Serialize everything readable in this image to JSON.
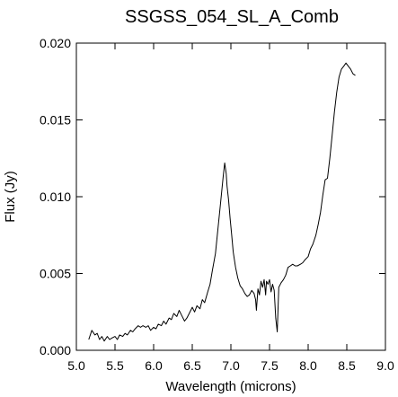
{
  "chart_data": {
    "type": "line",
    "title": "SSGSS_054_SL_A_Comb",
    "xlabel": "Wavelength (microns)",
    "ylabel": "Flux (Jy)",
    "xlim": [
      5.0,
      9.0
    ],
    "ylim": [
      0.0,
      0.02
    ],
    "xticks": [
      5.0,
      5.5,
      6.0,
      6.5,
      7.0,
      7.5,
      8.0,
      8.5,
      9.0
    ],
    "xtick_labels": [
      "5.0",
      "5.5",
      "6.0",
      "6.5",
      "7.0",
      "7.5",
      "8.0",
      "8.5",
      "9.0"
    ],
    "yticks": [
      0.0,
      0.005,
      0.01,
      0.015,
      0.02
    ],
    "ytick_labels": [
      "0.000",
      "0.005",
      "0.010",
      "0.015",
      "0.020"
    ],
    "grid": false,
    "series": [
      {
        "x": [
          5.16,
          5.2,
          5.24,
          5.27,
          5.3,
          5.33,
          5.36,
          5.4,
          5.43,
          5.46,
          5.5,
          5.53,
          5.56,
          5.6,
          5.63,
          5.66,
          5.7,
          5.73,
          5.76,
          5.8,
          5.83,
          5.86,
          5.9,
          5.93,
          5.96,
          6.0,
          6.03,
          6.06,
          6.1,
          6.13,
          6.16,
          6.2,
          6.23,
          6.26,
          6.3,
          6.33,
          6.36,
          6.4,
          6.43,
          6.46,
          6.5,
          6.53,
          6.56,
          6.6,
          6.63,
          6.66,
          6.7,
          6.73,
          6.76,
          6.8,
          6.83,
          6.86,
          6.88,
          6.9,
          6.92,
          6.94,
          6.95,
          6.97,
          6.99,
          7.01,
          7.03,
          7.06,
          7.09,
          7.12,
          7.15,
          7.18,
          7.21,
          7.24,
          7.27,
          7.3,
          7.32,
          7.33,
          7.35,
          7.37,
          7.39,
          7.41,
          7.43,
          7.45,
          7.46,
          7.48,
          7.5,
          7.52,
          7.54,
          7.56,
          7.58,
          7.6,
          7.62,
          7.65,
          7.68,
          7.71,
          7.74,
          7.77,
          7.8,
          7.83,
          7.86,
          7.9,
          7.93,
          7.96,
          8.0,
          8.03,
          8.06,
          8.1,
          8.13,
          8.16,
          8.19,
          8.22,
          8.25,
          8.28,
          8.31,
          8.34,
          8.37,
          8.4,
          8.43,
          8.46,
          8.49,
          8.52,
          8.55,
          8.58,
          8.61
        ],
        "y": [
          0.0007,
          0.0013,
          0.001,
          0.0011,
          0.0007,
          0.0009,
          0.0006,
          0.0009,
          0.0007,
          0.0008,
          0.0009,
          0.0007,
          0.001,
          0.0009,
          0.0011,
          0.001,
          0.0013,
          0.0012,
          0.0014,
          0.0016,
          0.0015,
          0.0016,
          0.0015,
          0.0016,
          0.0013,
          0.0015,
          0.0014,
          0.0017,
          0.0016,
          0.0019,
          0.0017,
          0.0021,
          0.002,
          0.0024,
          0.0022,
          0.0026,
          0.0023,
          0.0019,
          0.0021,
          0.0024,
          0.0028,
          0.0025,
          0.0029,
          0.0027,
          0.0033,
          0.0031,
          0.0038,
          0.0043,
          0.0052,
          0.0063,
          0.0078,
          0.0093,
          0.0103,
          0.0113,
          0.0122,
          0.0115,
          0.0107,
          0.0098,
          0.0086,
          0.0075,
          0.0064,
          0.0054,
          0.0047,
          0.0042,
          0.004,
          0.0037,
          0.0035,
          0.0036,
          0.0039,
          0.0037,
          0.0033,
          0.0026,
          0.004,
          0.0036,
          0.0045,
          0.0041,
          0.0046,
          0.0036,
          0.0045,
          0.0043,
          0.0046,
          0.0038,
          0.0043,
          0.0039,
          0.0021,
          0.0012,
          0.0041,
          0.0044,
          0.0046,
          0.0049,
          0.0054,
          0.0055,
          0.0056,
          0.0055,
          0.0055,
          0.0056,
          0.0057,
          0.0059,
          0.0061,
          0.0066,
          0.0069,
          0.0075,
          0.0082,
          0.009,
          0.0101,
          0.0111,
          0.0112,
          0.0125,
          0.014,
          0.0155,
          0.0168,
          0.0178,
          0.0183,
          0.0185,
          0.0187,
          0.0185,
          0.0183,
          0.018,
          0.0179
        ]
      }
    ]
  }
}
